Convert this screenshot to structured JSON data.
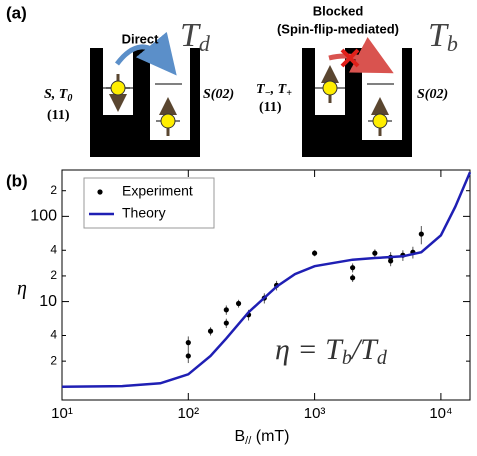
{
  "panel_a": {
    "label": "(a)",
    "direct": {
      "arrow_label": "Direct",
      "time": {
        "text": "T",
        "sub": "d"
      },
      "left_state": {
        "text": "S, T",
        "sub": "0",
        "line2": "(11)"
      },
      "right_state": "S(02)"
    },
    "blocked": {
      "arrow_label": [
        "Blocked",
        "(Spin-flip-mediated)"
      ],
      "time": {
        "text": "T",
        "sub": "b"
      },
      "left_state": {
        "text": "T",
        "sub": "−",
        "text2": ", T",
        "sub2": "+",
        "line2": "(11)"
      },
      "right_state": "S(02)"
    }
  },
  "chart_data": {
    "type": "scatter",
    "panel_label": "(b)",
    "x_label": {
      "text": "B",
      "sub": "//",
      "text2": " (mT)"
    },
    "y_label": "η",
    "annotation": {
      "text": "η = T",
      "sub": "b",
      "text2": "/T",
      "sub2": "d"
    },
    "xscale": "log",
    "yscale": "log",
    "xlim": [
      10,
      17000
    ],
    "ylim": [
      0.7,
      350
    ],
    "xticks": [
      {
        "value": 10,
        "label": "10¹"
      },
      {
        "value": 100,
        "label": "10²"
      },
      {
        "value": 1000,
        "label": "10³"
      },
      {
        "value": 10000,
        "label": "10⁴"
      }
    ],
    "yticks": [
      {
        "value": 2,
        "label": "2"
      },
      {
        "value": 4,
        "label": "4"
      },
      10,
      {
        "value": 20,
        "label": "2"
      },
      {
        "value": 40,
        "label": "4"
      },
      100,
      {
        "value": 200,
        "label": "2"
      }
    ],
    "legend": "upper left",
    "series": [
      {
        "name": "Experiment",
        "style": "markers",
        "color": "#000000",
        "x": [
          100,
          100,
          150,
          200,
          200,
          250,
          300,
          400,
          500,
          1000,
          2000,
          2000,
          3000,
          4000,
          4000,
          5000,
          6000,
          7000
        ],
        "values": [
          3.3,
          2.3,
          4.5,
          8,
          5.6,
          9.5,
          7,
          11,
          15.5,
          37,
          25,
          19,
          37,
          33,
          30,
          35,
          38,
          62
        ],
        "errors": [
          0.6,
          0.4,
          0.5,
          1,
          0.7,
          1,
          1,
          1.5,
          2,
          3,
          3,
          2,
          4,
          5,
          4,
          5,
          6,
          15
        ]
      },
      {
        "name": "Theory",
        "style": "line",
        "color": "#1f1fb4",
        "x": [
          10,
          30,
          60,
          100,
          150,
          200,
          300,
          500,
          700,
          1000,
          2000,
          3000,
          5000,
          7000,
          10000,
          13000,
          17000
        ],
        "values": [
          1.0,
          1.02,
          1.1,
          1.4,
          2.3,
          3.7,
          7.5,
          15,
          21,
          26,
          31,
          32.5,
          34,
          38,
          60,
          130,
          330
        ]
      }
    ]
  }
}
